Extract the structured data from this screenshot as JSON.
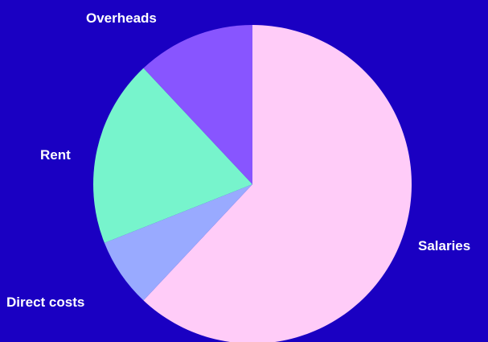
{
  "colors": {
    "background": "#1a00c2",
    "label_text": "#ffffff"
  },
  "chart_data": {
    "type": "pie",
    "title": "",
    "start_angle_deg": 0,
    "direction": "clockwise",
    "slices": [
      {
        "label": "Salaries",
        "value": 62,
        "color": "#ffccf8"
      },
      {
        "label": "Direct costs",
        "value": 7,
        "color": "#99aaff"
      },
      {
        "label": "Rent",
        "value": 19,
        "color": "#77f4cc"
      },
      {
        "label": "Overheads",
        "value": 12,
        "color": "#8855ff"
      }
    ]
  }
}
